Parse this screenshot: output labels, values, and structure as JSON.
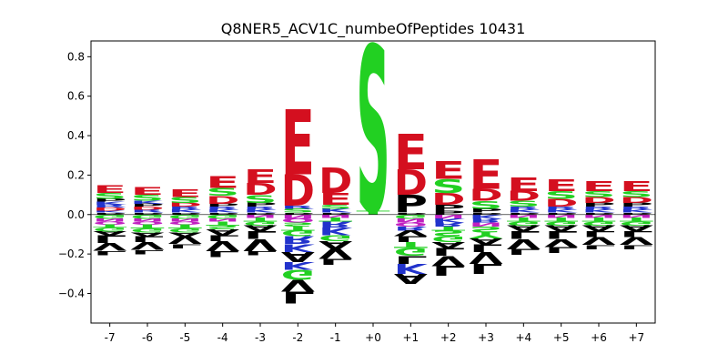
{
  "chart_data": {
    "type": "sequence-logo",
    "title": "Q8NER5_ACV1C_numbeOfPeptides 10431",
    "xlabel": "",
    "ylabel": "",
    "ylim": [
      -0.55,
      0.88
    ],
    "yticks": [
      -0.4,
      -0.2,
      0.0,
      0.2,
      0.4,
      0.6,
      0.8
    ],
    "grid": false,
    "colors": {
      "E": "#d40f1f",
      "D": "#d40f1f",
      "S": "#22d022",
      "G": "#22d022",
      "T": "#22d022",
      "Y": "#22d022",
      "K": "#2233cc",
      "R": "#2233cc",
      "H": "#2233cc",
      "P": "#000000",
      "A": "#000000",
      "V": "#000000",
      "L": "#000000",
      "I": "#000000",
      "F": "#000000",
      "W": "#000000",
      "M": "#000000",
      "N": "#c020c0",
      "Q": "#c020c0",
      "C": "#e0a020"
    },
    "positions": [
      {
        "label": "-7",
        "up": [
          [
            "P",
            0.01
          ],
          [
            "K",
            0.01
          ],
          [
            "D",
            0.015
          ],
          [
            "R",
            0.015
          ],
          [
            "K",
            0.015
          ],
          [
            "P",
            0.015
          ],
          [
            "S",
            0.03
          ],
          [
            "E",
            0.04
          ]
        ],
        "down": [
          [
            "G",
            0.02
          ],
          [
            "N",
            0.015
          ],
          [
            "Q",
            0.015
          ],
          [
            "T",
            0.015
          ],
          [
            "G",
            0.02
          ],
          [
            "A",
            0.02
          ],
          [
            "L",
            0.04
          ],
          [
            "V",
            0.04
          ],
          [
            "L",
            0.02
          ]
        ]
      },
      {
        "label": "-6",
        "up": [
          [
            "P",
            0.01
          ],
          [
            "R",
            0.015
          ],
          [
            "D",
            0.015
          ],
          [
            "P",
            0.015
          ],
          [
            "K",
            0.015
          ],
          [
            "S",
            0.03
          ],
          [
            "E",
            0.04
          ]
        ],
        "down": [
          [
            "G",
            0.02
          ],
          [
            "N",
            0.015
          ],
          [
            "Q",
            0.015
          ],
          [
            "T",
            0.02
          ],
          [
            "G",
            0.02
          ],
          [
            "A",
            0.02
          ],
          [
            "L",
            0.03
          ],
          [
            "V",
            0.04
          ],
          [
            "L",
            0.02
          ]
        ]
      },
      {
        "label": "-5",
        "up": [
          [
            "P",
            0.01
          ],
          [
            "K",
            0.015
          ],
          [
            "R",
            0.015
          ],
          [
            "D",
            0.02
          ],
          [
            "S",
            0.03
          ],
          [
            "E",
            0.04
          ]
        ],
        "down": [
          [
            "G",
            0.02
          ],
          [
            "N",
            0.015
          ],
          [
            "Q",
            0.015
          ],
          [
            "T",
            0.02
          ],
          [
            "G",
            0.02
          ],
          [
            "A",
            0.02
          ],
          [
            "V",
            0.04
          ],
          [
            "L",
            0.02
          ]
        ]
      },
      {
        "label": "-4",
        "up": [
          [
            "P",
            0.01
          ],
          [
            "K",
            0.015
          ],
          [
            "R",
            0.015
          ],
          [
            "P",
            0.015
          ],
          [
            "D",
            0.04
          ],
          [
            "S",
            0.04
          ],
          [
            "E",
            0.06
          ]
        ],
        "down": [
          [
            "G",
            0.02
          ],
          [
            "N",
            0.015
          ],
          [
            "T",
            0.02
          ],
          [
            "S",
            0.02
          ],
          [
            "A",
            0.03
          ],
          [
            "L",
            0.03
          ],
          [
            "V",
            0.05
          ],
          [
            "L",
            0.03
          ]
        ]
      },
      {
        "label": "-3",
        "up": [
          [
            "P",
            0.01
          ],
          [
            "K",
            0.015
          ],
          [
            "R",
            0.015
          ],
          [
            "P",
            0.02
          ],
          [
            "S",
            0.04
          ],
          [
            "D",
            0.06
          ],
          [
            "E",
            0.07
          ]
        ],
        "down": [
          [
            "N",
            0.015
          ],
          [
            "T",
            0.02
          ],
          [
            "G",
            0.02
          ],
          [
            "A",
            0.03
          ],
          [
            "L",
            0.04
          ],
          [
            "V",
            0.06
          ],
          [
            "L",
            0.02
          ]
        ]
      },
      {
        "label": "-2",
        "up": [
          [
            "P",
            0.01
          ],
          [
            "S",
            0.02
          ],
          [
            "R",
            0.015
          ],
          [
            "D",
            0.16
          ],
          [
            "E",
            0.33
          ]
        ],
        "down": [
          [
            "N",
            0.02
          ],
          [
            "Q",
            0.02
          ],
          [
            "S",
            0.02
          ],
          [
            "T",
            0.02
          ],
          [
            "G",
            0.03
          ],
          [
            "R",
            0.04
          ],
          [
            "K",
            0.04
          ],
          [
            "A",
            0.05
          ],
          [
            "K",
            0.04
          ],
          [
            "G",
            0.05
          ],
          [
            "V",
            0.06
          ],
          [
            "L",
            0.06
          ]
        ]
      },
      {
        "label": "-1",
        "up": [
          [
            "P",
            0.01
          ],
          [
            "K",
            0.02
          ],
          [
            "S",
            0.02
          ],
          [
            "E",
            0.06
          ],
          [
            "D",
            0.13
          ]
        ],
        "down": [
          [
            "N",
            0.015
          ],
          [
            "T",
            0.02
          ],
          [
            "R",
            0.03
          ],
          [
            "K",
            0.04
          ],
          [
            "G",
            0.03
          ],
          [
            "A",
            0.04
          ],
          [
            "V",
            0.05
          ],
          [
            "L",
            0.03
          ]
        ]
      },
      {
        "label": "+0",
        "up": [
          [
            "T",
            0.02
          ],
          [
            "S",
            0.84
          ]
        ],
        "down": []
      },
      {
        "label": "+1",
        "up": [
          [
            "P",
            0.01
          ],
          [
            "P",
            0.09
          ],
          [
            "D",
            0.13
          ],
          [
            "E",
            0.18
          ]
        ],
        "down": [
          [
            "G",
            0.02
          ],
          [
            "N",
            0.02
          ],
          [
            "Q",
            0.02
          ],
          [
            "R",
            0.02
          ],
          [
            "V",
            0.03
          ],
          [
            "L",
            0.03
          ],
          [
            "T",
            0.03
          ],
          [
            "G",
            0.04
          ],
          [
            "L",
            0.04
          ],
          [
            "K",
            0.05
          ],
          [
            "A",
            0.05
          ]
        ]
      },
      {
        "label": "+2",
        "up": [
          [
            "P",
            0.02
          ],
          [
            "P",
            0.03
          ],
          [
            "D",
            0.06
          ],
          [
            "S",
            0.07
          ],
          [
            "E",
            0.09
          ]
        ],
        "down": [
          [
            "N",
            0.02
          ],
          [
            "K",
            0.02
          ],
          [
            "R",
            0.02
          ],
          [
            "T",
            0.02
          ],
          [
            "S",
            0.03
          ],
          [
            "G",
            0.03
          ],
          [
            "A",
            0.03
          ],
          [
            "L",
            0.04
          ],
          [
            "V",
            0.05
          ],
          [
            "L",
            0.05
          ]
        ]
      },
      {
        "label": "+3",
        "up": [
          [
            "P",
            0.01
          ],
          [
            "P",
            0.02
          ],
          [
            "S",
            0.04
          ],
          [
            "D",
            0.06
          ],
          [
            "E",
            0.15
          ]
        ],
        "down": [
          [
            "K",
            0.02
          ],
          [
            "R",
            0.02
          ],
          [
            "N",
            0.02
          ],
          [
            "S",
            0.03
          ],
          [
            "Y",
            0.03
          ],
          [
            "A",
            0.03
          ],
          [
            "L",
            0.04
          ],
          [
            "V",
            0.06
          ],
          [
            "L",
            0.05
          ]
        ]
      },
      {
        "label": "+4",
        "up": [
          [
            "P",
            0.01
          ],
          [
            "K",
            0.015
          ],
          [
            "R",
            0.015
          ],
          [
            "S",
            0.03
          ],
          [
            "D",
            0.05
          ],
          [
            "E",
            0.07
          ]
        ],
        "down": [
          [
            "N",
            0.015
          ],
          [
            "T",
            0.02
          ],
          [
            "G",
            0.02
          ],
          [
            "A",
            0.03
          ],
          [
            "L",
            0.04
          ],
          [
            "V",
            0.05
          ],
          [
            "L",
            0.03
          ]
        ]
      },
      {
        "label": "+5",
        "up": [
          [
            "P",
            0.01
          ],
          [
            "K",
            0.015
          ],
          [
            "R",
            0.015
          ],
          [
            "D",
            0.04
          ],
          [
            "S",
            0.04
          ],
          [
            "E",
            0.06
          ]
        ],
        "down": [
          [
            "N",
            0.015
          ],
          [
            "T",
            0.02
          ],
          [
            "G",
            0.02
          ],
          [
            "A",
            0.03
          ],
          [
            "L",
            0.04
          ],
          [
            "V",
            0.04
          ],
          [
            "L",
            0.03
          ]
        ]
      },
      {
        "label": "+6",
        "up": [
          [
            "P",
            0.01
          ],
          [
            "K",
            0.015
          ],
          [
            "R",
            0.015
          ],
          [
            "P",
            0.02
          ],
          [
            "D",
            0.03
          ],
          [
            "S",
            0.03
          ],
          [
            "E",
            0.05
          ]
        ],
        "down": [
          [
            "N",
            0.015
          ],
          [
            "T",
            0.02
          ],
          [
            "G",
            0.02
          ],
          [
            "A",
            0.03
          ],
          [
            "L",
            0.03
          ],
          [
            "V",
            0.04
          ],
          [
            "L",
            0.02
          ]
        ]
      },
      {
        "label": "+7",
        "up": [
          [
            "P",
            0.01
          ],
          [
            "K",
            0.015
          ],
          [
            "R",
            0.015
          ],
          [
            "P",
            0.02
          ],
          [
            "D",
            0.03
          ],
          [
            "S",
            0.03
          ],
          [
            "E",
            0.05
          ]
        ],
        "down": [
          [
            "N",
            0.015
          ],
          [
            "T",
            0.02
          ],
          [
            "G",
            0.02
          ],
          [
            "A",
            0.03
          ],
          [
            "L",
            0.03
          ],
          [
            "V",
            0.04
          ],
          [
            "L",
            0.02
          ]
        ]
      }
    ]
  }
}
